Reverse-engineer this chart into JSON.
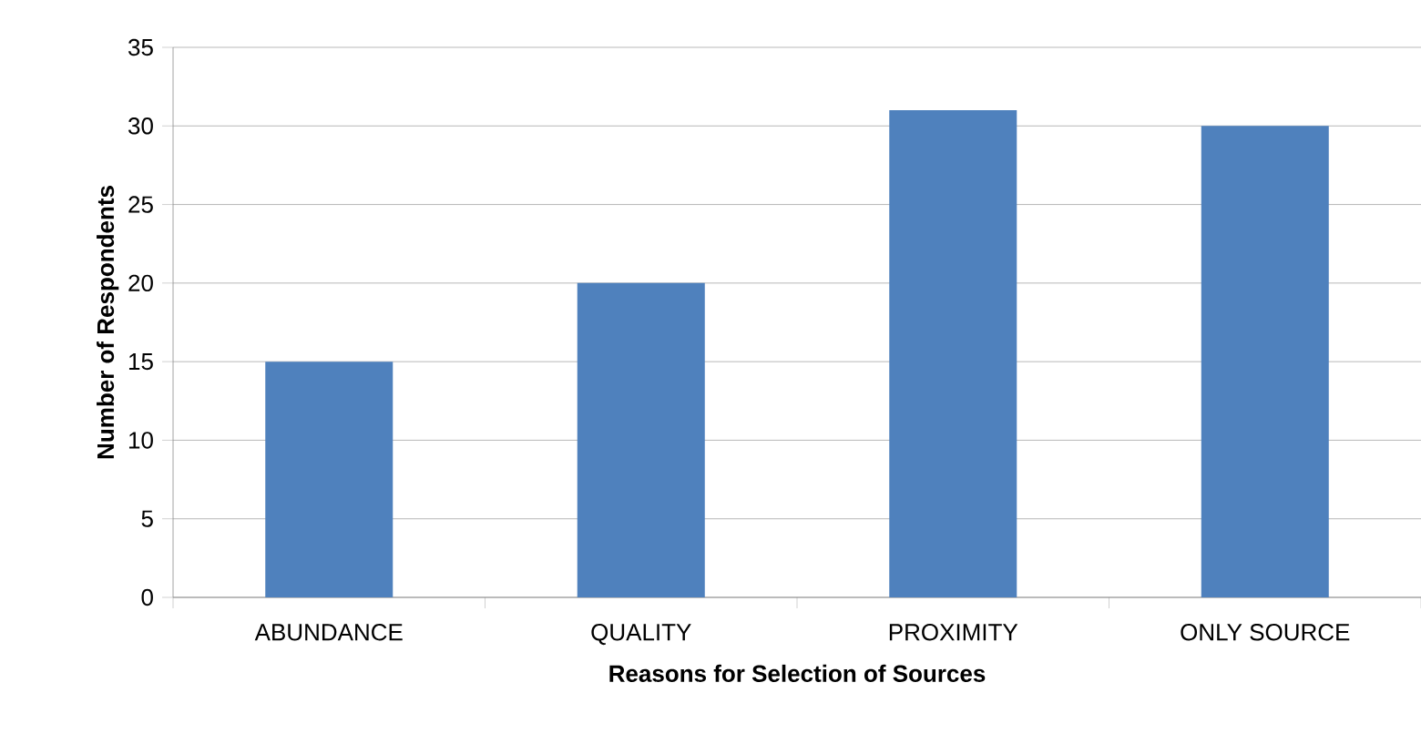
{
  "chart_data": {
    "type": "bar",
    "xlabel": "Reasons for Selection of Sources",
    "ylabel": "Number of Respondents",
    "categories": [
      "ABUNDANCE",
      "QUALITY",
      "PROXIMITY",
      "ONLY SOURCE"
    ],
    "values": [
      15,
      20,
      31,
      30
    ],
    "color": "#4f81bd",
    "ylim": [
      0,
      35
    ],
    "yticks": [
      0,
      5,
      10,
      15,
      20,
      25,
      30,
      35
    ],
    "grid": "y"
  }
}
